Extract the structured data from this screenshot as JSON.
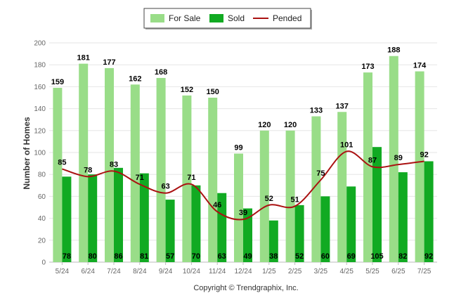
{
  "chart_data": {
    "type": "bar",
    "categories": [
      "5/24",
      "6/24",
      "7/24",
      "8/24",
      "9/24",
      "10/24",
      "11/24",
      "12/24",
      "1/25",
      "2/25",
      "3/25",
      "4/25",
      "5/25",
      "6/25",
      "7/25"
    ],
    "series": [
      {
        "name": "For Sale",
        "kind": "bar",
        "color": "#99dd88",
        "values": [
          159,
          181,
          177,
          162,
          168,
          152,
          150,
          99,
          120,
          120,
          133,
          137,
          173,
          188,
          174
        ]
      },
      {
        "name": "Sold",
        "kind": "bar",
        "color": "#11aa22",
        "values": [
          78,
          80,
          86,
          81,
          57,
          70,
          63,
          49,
          38,
          52,
          60,
          69,
          105,
          82,
          92
        ]
      },
      {
        "name": "Pended",
        "kind": "line",
        "color": "#aa1111",
        "values": [
          85,
          78,
          83,
          71,
          63,
          71,
          46,
          39,
          52,
          51,
          75,
          101,
          87,
          89,
          92
        ]
      }
    ],
    "ylabel": "Number of Homes",
    "ylim": [
      0,
      200
    ],
    "yticks": [
      0,
      20,
      40,
      60,
      80,
      100,
      120,
      140,
      160,
      180,
      200
    ],
    "grid": true,
    "legend_position": "top-center",
    "credit": "Copyright © Trendgraphix, Inc."
  }
}
